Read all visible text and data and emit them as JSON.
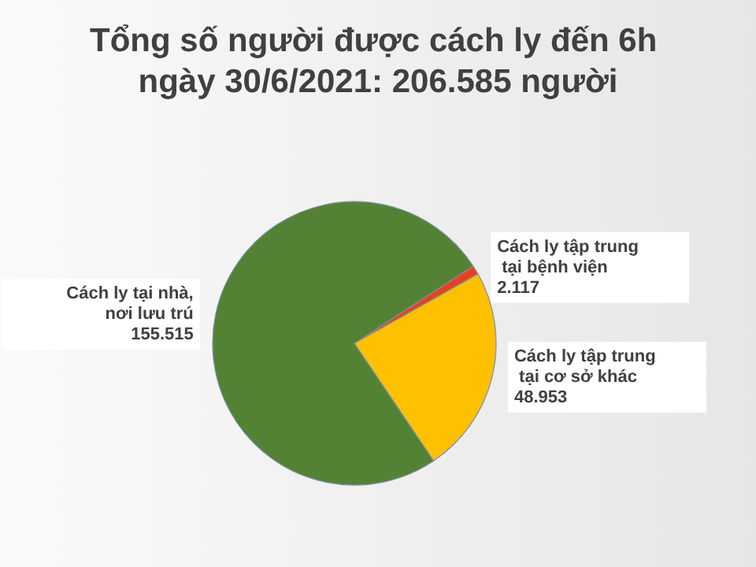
{
  "chart_data": {
    "type": "pie",
    "title": "Tổng số người được cách ly đến 6h ngày 30/6/2021: 206.585 người",
    "categories": [
      "Cách ly tập trung tại bệnh viện",
      "Cách ly tập trung tại cơ sở khác",
      "Cách ly tại nhà, nơi lưu trú"
    ],
    "values": [
      2117,
      48953,
      155515
    ],
    "value_labels": [
      "2.117",
      "48.953",
      "155.515"
    ],
    "colors": [
      "#e8401c",
      "#ffc000",
      "#548235"
    ],
    "legend": false
  }
}
